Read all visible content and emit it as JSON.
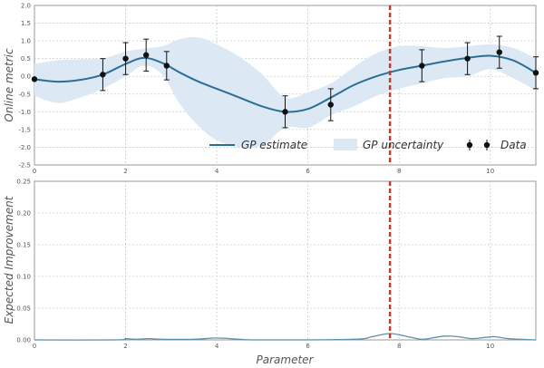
{
  "colors": {
    "line": "#2a6f97",
    "band": "#dce8f3",
    "points": "#111111",
    "vline": "#c0392b",
    "grid": "#bbbbbb"
  },
  "chart_data": [
    {
      "type": "line",
      "ylabel": "Online metric",
      "xlabel": "",
      "xlim": [
        0,
        11
      ],
      "ylim": [
        -2.5,
        2.0
      ],
      "xticks": [
        "0",
        "2",
        "4",
        "6",
        "8",
        "10"
      ],
      "yticks": [
        "2.0",
        "1.5",
        "1.0",
        "0.5",
        "0.0",
        "-0.5",
        "-1.0",
        "-1.5",
        "-2.0",
        "-2.5"
      ],
      "grid": true,
      "legend_position": "lower-right",
      "legend": [
        "GP estimate",
        "GP uncertainty",
        "Data"
      ],
      "vline_x": 7.8,
      "series": [
        {
          "name": "GP estimate",
          "x": [
            0,
            0.5,
            1,
            1.5,
            2,
            2.4,
            2.8,
            3.2,
            3.6,
            4,
            4.5,
            5,
            5.5,
            6,
            6.5,
            7,
            7.5,
            8,
            8.5,
            9,
            9.5,
            10,
            10.5,
            11
          ],
          "y": [
            -0.08,
            -0.15,
            -0.1,
            0.05,
            0.35,
            0.52,
            0.38,
            0.1,
            -0.15,
            -0.35,
            -0.6,
            -0.85,
            -1.0,
            -0.92,
            -0.6,
            -0.25,
            0.0,
            0.18,
            0.3,
            0.42,
            0.52,
            0.58,
            0.45,
            0.1
          ]
        },
        {
          "name": "GP uncertainty",
          "x": [
            0,
            0.5,
            1,
            1.5,
            2,
            2.4,
            2.8,
            3.2,
            3.6,
            4,
            4.5,
            5,
            5.5,
            6,
            6.5,
            7,
            7.5,
            8,
            8.5,
            9,
            9.5,
            10,
            10.5,
            11
          ],
          "upper": [
            0.35,
            0.45,
            0.48,
            0.5,
            0.7,
            0.78,
            0.85,
            1.05,
            1.1,
            0.9,
            0.55,
            0.05,
            -0.6,
            -0.45,
            -0.2,
            0.25,
            0.65,
            0.85,
            0.85,
            0.8,
            0.85,
            0.9,
            0.8,
            0.5
          ],
          "lower": [
            -0.55,
            -0.75,
            -0.6,
            -0.35,
            0.0,
            0.3,
            0.05,
            -0.8,
            -1.4,
            -1.8,
            -2.0,
            -1.95,
            -1.45,
            -1.45,
            -1.1,
            -0.85,
            -0.55,
            -0.35,
            -0.2,
            -0.05,
            0.0,
            0.2,
            -0.05,
            -0.4
          ]
        },
        {
          "name": "Data",
          "x": [
            0,
            1.5,
            2,
            2.45,
            2.9,
            5.5,
            6.5,
            8.5,
            9.5,
            10.2,
            11
          ],
          "y": [
            -0.08,
            0.05,
            0.5,
            0.6,
            0.3,
            -1.0,
            -0.8,
            0.3,
            0.5,
            0.68,
            0.1
          ],
          "err": [
            0.0,
            0.45,
            0.45,
            0.45,
            0.4,
            0.45,
            0.45,
            0.45,
            0.45,
            0.45,
            0.45
          ]
        }
      ]
    },
    {
      "type": "line",
      "ylabel": "Expected Improvement",
      "xlabel": "Parameter",
      "xlim": [
        0,
        11
      ],
      "ylim": [
        0,
        0.25
      ],
      "xticks": [
        "0",
        "2",
        "4",
        "6",
        "8",
        "10"
      ],
      "yticks": [
        "0.25",
        "0.20",
        "0.15",
        "0.10",
        "0.05",
        "0.00"
      ],
      "grid": true,
      "vline_x": 7.8,
      "series": [
        {
          "name": "Expected Improvement",
          "x": [
            0,
            1.8,
            2.0,
            2.2,
            2.5,
            2.8,
            3.5,
            4.0,
            4.5,
            5.0,
            7.0,
            7.4,
            7.8,
            8.2,
            8.5,
            8.8,
            9.0,
            9.3,
            9.6,
            9.9,
            10.1,
            10.4,
            11
          ],
          "y": [
            0,
            0,
            0.002,
            0.001,
            0.002,
            0.001,
            0.001,
            0.003,
            0.001,
            0,
            0.001,
            0.005,
            0.01,
            0.005,
            0.001,
            0.004,
            0.006,
            0.005,
            0.002,
            0.004,
            0.005,
            0.002,
            0
          ]
        }
      ]
    }
  ]
}
